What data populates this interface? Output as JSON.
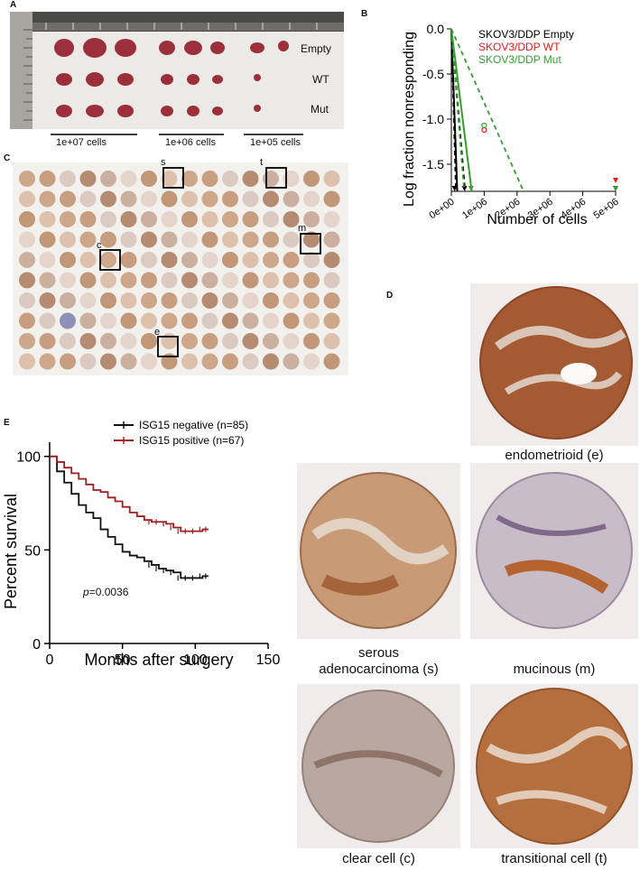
{
  "panels": {
    "a": {
      "label": "A",
      "rows": [
        "Empty",
        "WT",
        "Mut"
      ],
      "groups": [
        "1e+07 cells",
        "1e+06 cells",
        "1e+05 cells"
      ]
    },
    "b": {
      "label": "B"
    },
    "c": {
      "label": "C",
      "box_labels": [
        "s",
        "t",
        "m",
        "c",
        "e"
      ]
    },
    "d": {
      "label": "D",
      "captions": {
        "endometrioid": "endometrioid (e)",
        "serous_1": "serous",
        "serous_2": "adenocarcinoma (s)",
        "mucinous": "mucinous (m)",
        "clear_cell": "clear cell (c)",
        "transitional": "transitional cell (t)"
      }
    },
    "e": {
      "label": "E",
      "pvalue": "=0.0036",
      "p_symbol": "p"
    }
  },
  "chart_data": [
    {
      "id": "panel-b",
      "type": "line",
      "xlabel": "Number of cells",
      "ylabel": "Log fraction nonresponding",
      "xlim": [
        0,
        5000000
      ],
      "ylim": [
        -1.8,
        0.0
      ],
      "xticks": [
        "0e+00",
        "1e+06",
        "2e+06",
        "3e+06",
        "4e+06",
        "5e+06"
      ],
      "xtick_values": [
        0,
        1000000,
        2000000,
        3000000,
        4000000,
        5000000
      ],
      "yticks": [
        "0.0",
        "-0.5",
        "-1.0",
        "-1.5"
      ],
      "ytick_values": [
        0.0,
        -0.5,
        -1.0,
        -1.5
      ],
      "legend": [
        "SKOV3/DDP Empty",
        "SKOV3/DDP WT",
        "SKOV3/DDP Mut"
      ],
      "series": [
        {
          "name": "SKOV3/DDP Empty",
          "color": "#000000",
          "solid": [
            [
              0,
              0.0
            ],
            [
              180000,
              -1.8
            ]
          ],
          "dashed": [
            [
              [
                0,
                0.0
              ],
              [
                140000,
                -1.8
              ]
            ],
            [
              [
                0,
                0.0
              ],
              [
                420000,
                -1.8
              ]
            ]
          ],
          "points": [
            [
              100000,
              -1.77
            ],
            [
              400000,
              -1.77
            ],
            [
              5000000,
              -1.77
            ]
          ]
        },
        {
          "name": "SKOV3/DDP WT",
          "color": "#e41a1c",
          "solid": [],
          "dashed": [],
          "points": [
            [
              1000000,
              -1.12
            ],
            [
              5000000,
              -1.68
            ]
          ]
        },
        {
          "name": "SKOV3/DDP Mut",
          "color": "#33a02c",
          "solid": [
            [
              0,
              0.0
            ],
            [
              620000,
              -1.8
            ]
          ],
          "dashed": [
            [
              [
                0,
                0.0
              ],
              [
                390000,
                -1.8
              ]
            ],
            [
              [
                0,
                0.0
              ],
              [
                2200000,
                -1.8
              ]
            ]
          ],
          "points": [
            [
              600000,
              -1.77
            ],
            [
              1000000,
              -1.07
            ],
            [
              5000000,
              -1.77
            ]
          ]
        }
      ]
    },
    {
      "id": "panel-e",
      "type": "line",
      "xlabel": "Months after surgery",
      "ylabel": "Percent survival",
      "xlim": [
        0,
        150
      ],
      "ylim": [
        0,
        110
      ],
      "xticks": [
        "0",
        "50",
        "100",
        "150"
      ],
      "xtick_values": [
        0,
        50,
        100,
        150
      ],
      "yticks": [
        "0",
        "50",
        "100"
      ],
      "ytick_values": [
        0,
        50,
        100
      ],
      "series": [
        {
          "name": "ISG15 negative (n=85)",
          "color": "#111111",
          "x": [
            0,
            5,
            10,
            15,
            20,
            25,
            30,
            35,
            40,
            45,
            50,
            55,
            60,
            65,
            70,
            75,
            80,
            85,
            90,
            95,
            100,
            105,
            109
          ],
          "y": [
            100,
            92,
            86,
            80,
            74,
            70,
            67,
            61,
            57,
            53,
            49,
            47,
            46,
            44,
            42,
            40,
            39,
            38,
            35,
            35,
            35,
            36,
            36
          ]
        },
        {
          "name": "ISG15 positive (n=67)",
          "color": "#a31d1d",
          "x": [
            0,
            5,
            10,
            15,
            20,
            25,
            30,
            35,
            40,
            45,
            50,
            55,
            60,
            65,
            70,
            75,
            80,
            85,
            90,
            95,
            100,
            105,
            109
          ],
          "y": [
            100,
            97,
            94,
            91,
            88,
            85,
            82,
            81,
            78,
            76,
            73,
            70,
            68,
            66,
            65,
            65,
            64,
            62,
            60,
            60,
            60,
            61,
            61
          ]
        }
      ]
    }
  ]
}
